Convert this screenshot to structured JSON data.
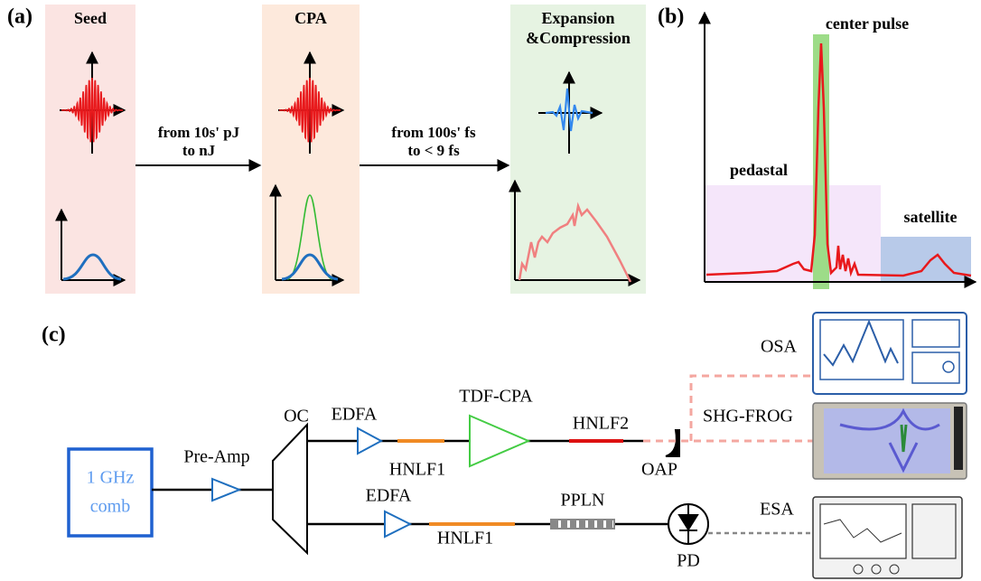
{
  "panel_a": {
    "label": "(a)",
    "stages": [
      {
        "title_lines": [
          "Seed"
        ]
      },
      {
        "title_lines": [
          "CPA"
        ]
      },
      {
        "title_lines": [
          "Expansion",
          "&Compression"
        ]
      }
    ],
    "arrows": [
      {
        "lines": [
          "from 10s' pJ",
          "to nJ"
        ]
      },
      {
        "lines": [
          "from 100s' fs",
          "to < 9 fs"
        ]
      }
    ]
  },
  "panel_b": {
    "label": "(b)",
    "annotations": {
      "center": "center pulse",
      "pedestal": "pedastal",
      "satellite": "satellite"
    }
  },
  "panel_c": {
    "label": "(c)",
    "source": {
      "lines": [
        "1 GHz",
        "comb"
      ]
    },
    "preamp": "Pre-Amp",
    "coupler": "OC",
    "upper": {
      "amp": "EDFA",
      "fiber1": "HNLF1",
      "cpa": "TDF-CPA",
      "fiber2": "HNLF2",
      "mirror": "OAP"
    },
    "lower": {
      "amp": "EDFA",
      "fiber": "HNLF1",
      "crystal": "PPLN",
      "detector": "PD"
    },
    "instruments": {
      "osa": "OSA",
      "frog": "SHG-FROG",
      "esa": "ESA"
    }
  }
}
